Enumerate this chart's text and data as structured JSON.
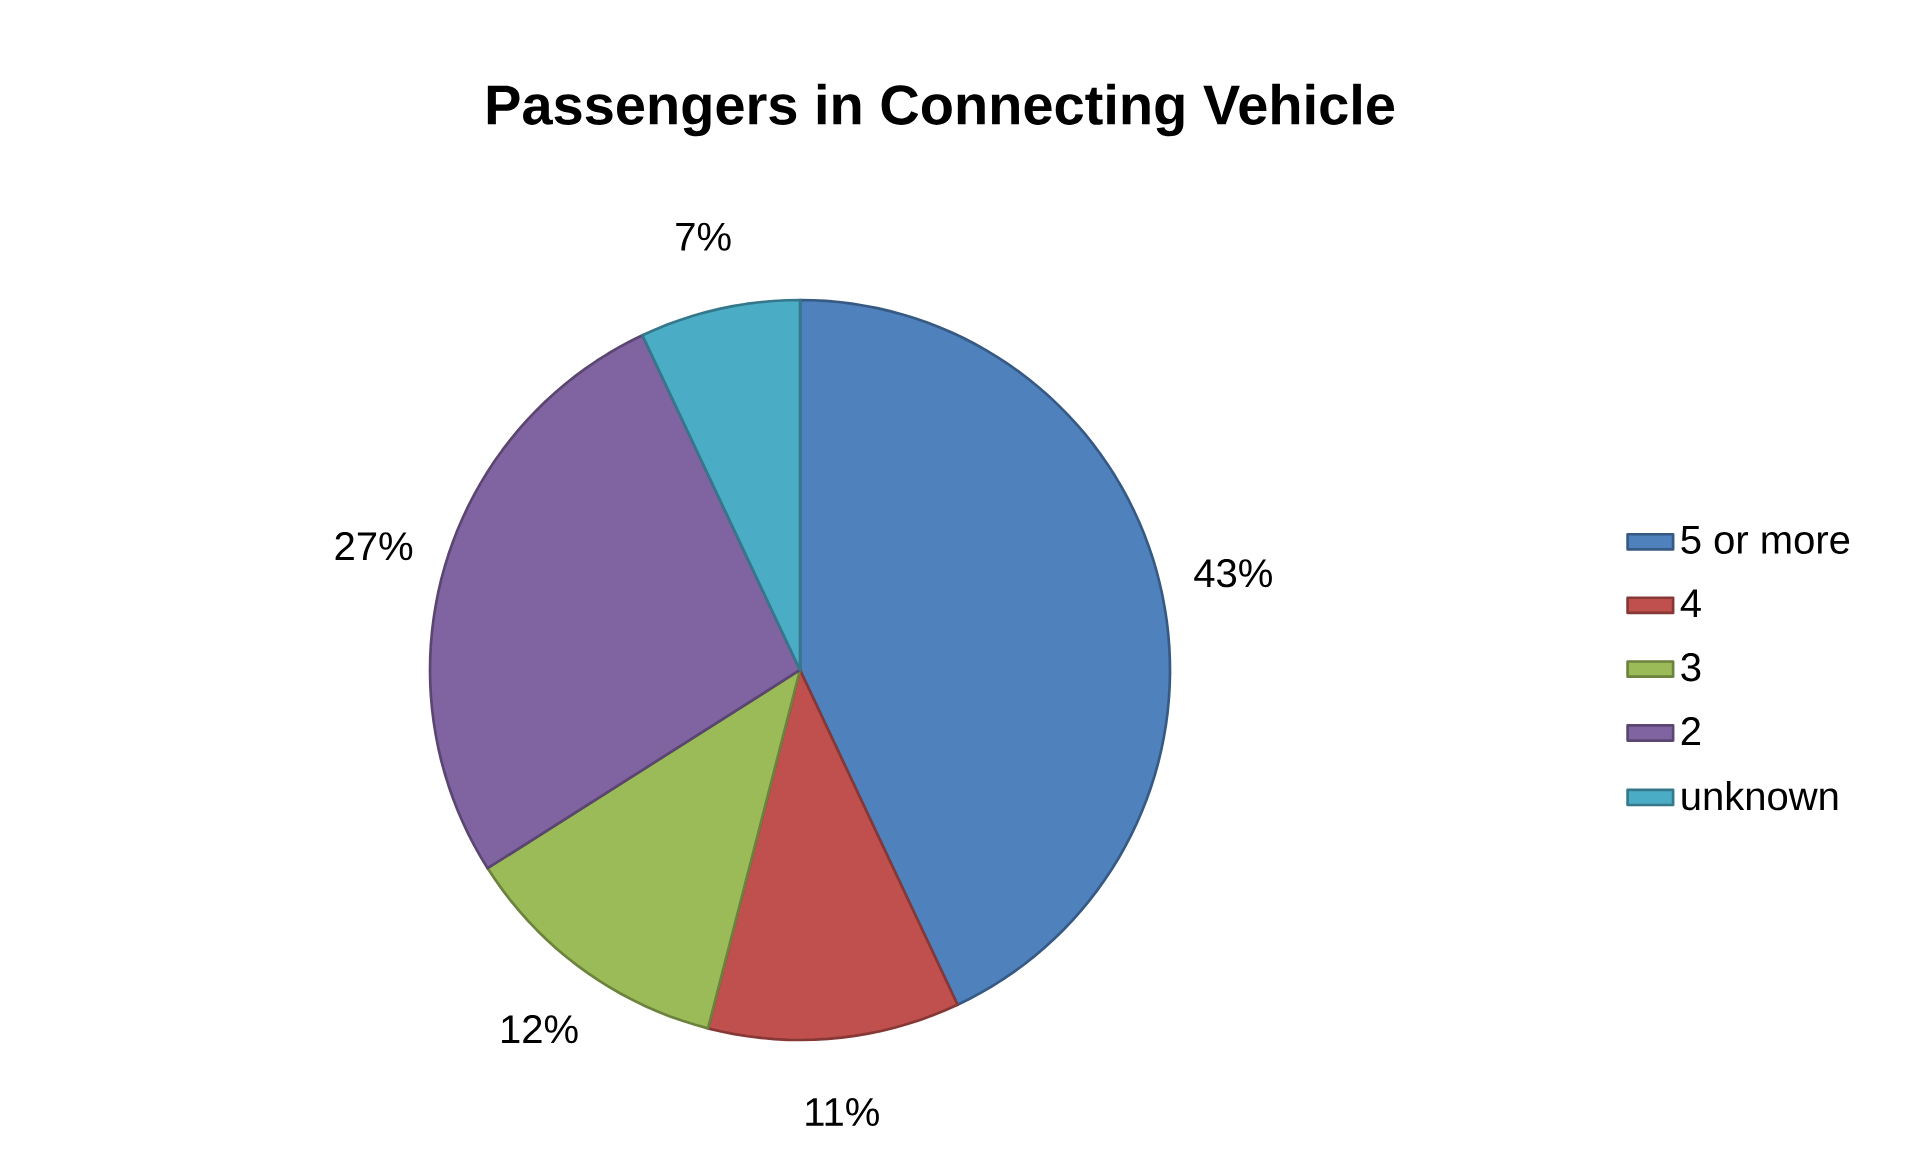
{
  "chart_data": {
    "type": "pie",
    "title": "Passengers in Connecting Vehicle",
    "categories": [
      "5 or more",
      "4",
      "3",
      "2",
      "unknown"
    ],
    "values": [
      43,
      11,
      12,
      27,
      7
    ],
    "value_labels": [
      "43%",
      "11%",
      "12%",
      "27%",
      "7%"
    ],
    "colors": [
      "#4f81bd",
      "#c0504d",
      "#9bbb59",
      "#8064a2",
      "#4bacc6"
    ],
    "legend": "right"
  }
}
